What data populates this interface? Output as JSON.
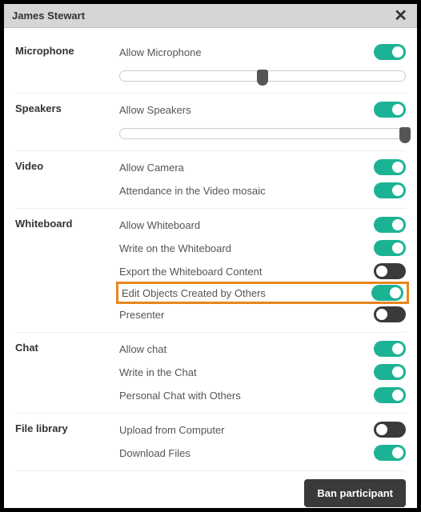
{
  "colors": {
    "toggle_on": "#1bb394",
    "toggle_off": "#3a3a3a",
    "highlight_border": "#e8861d",
    "titlebar_bg": "#d6d6d6",
    "ban_bg": "#3a3a3a"
  },
  "dialog": {
    "title": "James Stewart",
    "close_icon": "✕"
  },
  "sections": {
    "microphone": {
      "label": "Microphone",
      "allow": {
        "label": "Allow Microphone",
        "on": true
      },
      "slider_pct": 50
    },
    "speakers": {
      "label": "Speakers",
      "allow": {
        "label": "Allow Speakers",
        "on": true
      },
      "slider_pct": 100
    },
    "video": {
      "label": "Video",
      "camera": {
        "label": "Allow Camera",
        "on": true
      },
      "mosaic": {
        "label": "Attendance in the Video mosaic",
        "on": true
      }
    },
    "whiteboard": {
      "label": "Whiteboard",
      "allow": {
        "label": "Allow Whiteboard",
        "on": true
      },
      "write": {
        "label": "Write on the Whiteboard",
        "on": true
      },
      "export": {
        "label": "Export the Whiteboard Content",
        "on": false
      },
      "edit_others": {
        "label": "Edit Objects Created by Others",
        "on": true
      },
      "presenter": {
        "label": "Presenter",
        "on": false
      }
    },
    "chat": {
      "label": "Chat",
      "allow": {
        "label": "Allow chat",
        "on": true
      },
      "write": {
        "label": "Write in the Chat",
        "on": true
      },
      "personal": {
        "label": "Personal Chat with Others",
        "on": true
      }
    },
    "file_library": {
      "label": "File library",
      "upload": {
        "label": "Upload from Computer",
        "on": false
      },
      "download": {
        "label": "Download Files",
        "on": true
      }
    }
  },
  "footer": {
    "ban_label": "Ban participant"
  }
}
